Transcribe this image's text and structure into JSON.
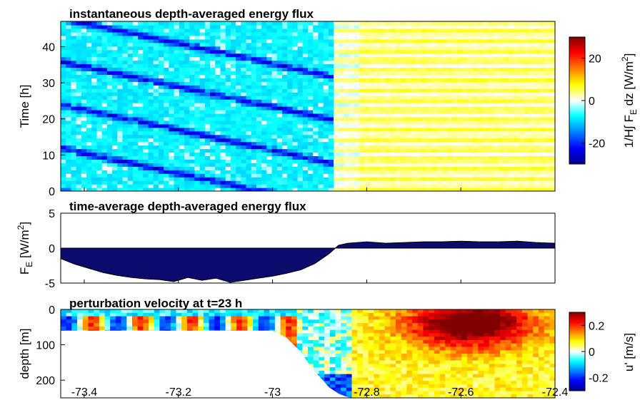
{
  "chart_data": [
    {
      "type": "heatmap",
      "title": "instantaneous depth-averaged energy flux",
      "ylabel": "Time [h]",
      "xlim": [
        -73.45,
        -72.4
      ],
      "ylim": [
        0,
        47
      ],
      "yticks": [
        0,
        10,
        20,
        30,
        40
      ],
      "colorbar": {
        "label": "1/H∫ F",
        "label_sub": "E",
        "label_tail": " dz [W/m",
        "label_sup": "2",
        "label_end": "]",
        "range": [
          -30,
          30
        ],
        "ticks": [
          -20,
          0,
          20
        ],
        "colormap": "jet"
      },
      "features": "Westward of about -72.87 the flux is negative (cyan/blue) with dark-blue diagonal bands sloping downward to the east; eastward it is weakly positive (yellow) with horizontal banding."
    },
    {
      "type": "area",
      "title": "time-average depth-averaged energy flux",
      "ylabel": "F",
      "ylabel_sub": "E",
      "ylabel_tail": " [W/m",
      "ylabel_sup": "2",
      "ylabel_end": "]",
      "xlim": [
        -73.45,
        -72.4
      ],
      "ylim": [
        -5,
        5
      ],
      "yticks": [
        -5,
        0,
        5
      ],
      "fill_color": "#0b0b6e",
      "x": [
        -73.45,
        -73.42,
        -73.39,
        -73.36,
        -73.33,
        -73.3,
        -73.27,
        -73.24,
        -73.21,
        -73.18,
        -73.15,
        -73.12,
        -73.09,
        -73.06,
        -73.03,
        -73.0,
        -72.97,
        -72.94,
        -72.91,
        -72.88,
        -72.86,
        -72.84,
        -72.8,
        -72.76,
        -72.72,
        -72.68,
        -72.64,
        -72.6,
        -72.56,
        -72.52,
        -72.48,
        -72.44,
        -72.4
      ],
      "y": [
        -1.5,
        -2.3,
        -2.9,
        -3.5,
        -3.9,
        -4.2,
        -4.4,
        -4.5,
        -4.8,
        -4.2,
        -4.6,
        -4.3,
        -4.9,
        -4.6,
        -4.3,
        -4.0,
        -3.6,
        -3.1,
        -2.2,
        -0.8,
        0.4,
        0.7,
        0.9,
        0.7,
        0.8,
        0.9,
        0.9,
        1.0,
        0.9,
        0.9,
        1.0,
        0.8,
        0.7
      ]
    },
    {
      "type": "heatmap",
      "title": "perturbation velocity at t=23 h",
      "xlabel": "",
      "ylabel": "depth [m]",
      "xlim": [
        -73.45,
        -72.4
      ],
      "ylim": [
        250,
        0
      ],
      "yticks": [
        0,
        100,
        200
      ],
      "xticks": [
        -73.4,
        -73.2,
        -73.0,
        -72.8,
        -72.6,
        -72.4
      ],
      "xtick_labels": [
        "-73.4",
        "-73.2",
        "-73",
        "-72.8",
        "-72.6",
        "-72.4"
      ],
      "colorbar": {
        "label": "u' [m/s]",
        "range": [
          -0.3,
          0.3
        ],
        "ticks": [
          -0.2,
          0,
          0.2
        ],
        "tick_labels": [
          "-0.2",
          "0",
          "0.2"
        ],
        "colormap": "jet"
      },
      "bathymetry": {
        "x": [
          -73.45,
          -73.0,
          -72.97,
          -72.94,
          -72.92,
          -72.9,
          -72.88,
          -72.86,
          -72.84,
          -72.83
        ],
        "depth": [
          60,
          60,
          80,
          120,
          160,
          190,
          220,
          238,
          248,
          250
        ]
      },
      "features": "Shallow shelf (about 60 m) west of -73.0 with alternating blue/red near-surface bands; deep region east of -72.85 dominated by positive velocity, strongest (dark red) between -72.7 and -72.45 in the upper 100 m."
    }
  ]
}
